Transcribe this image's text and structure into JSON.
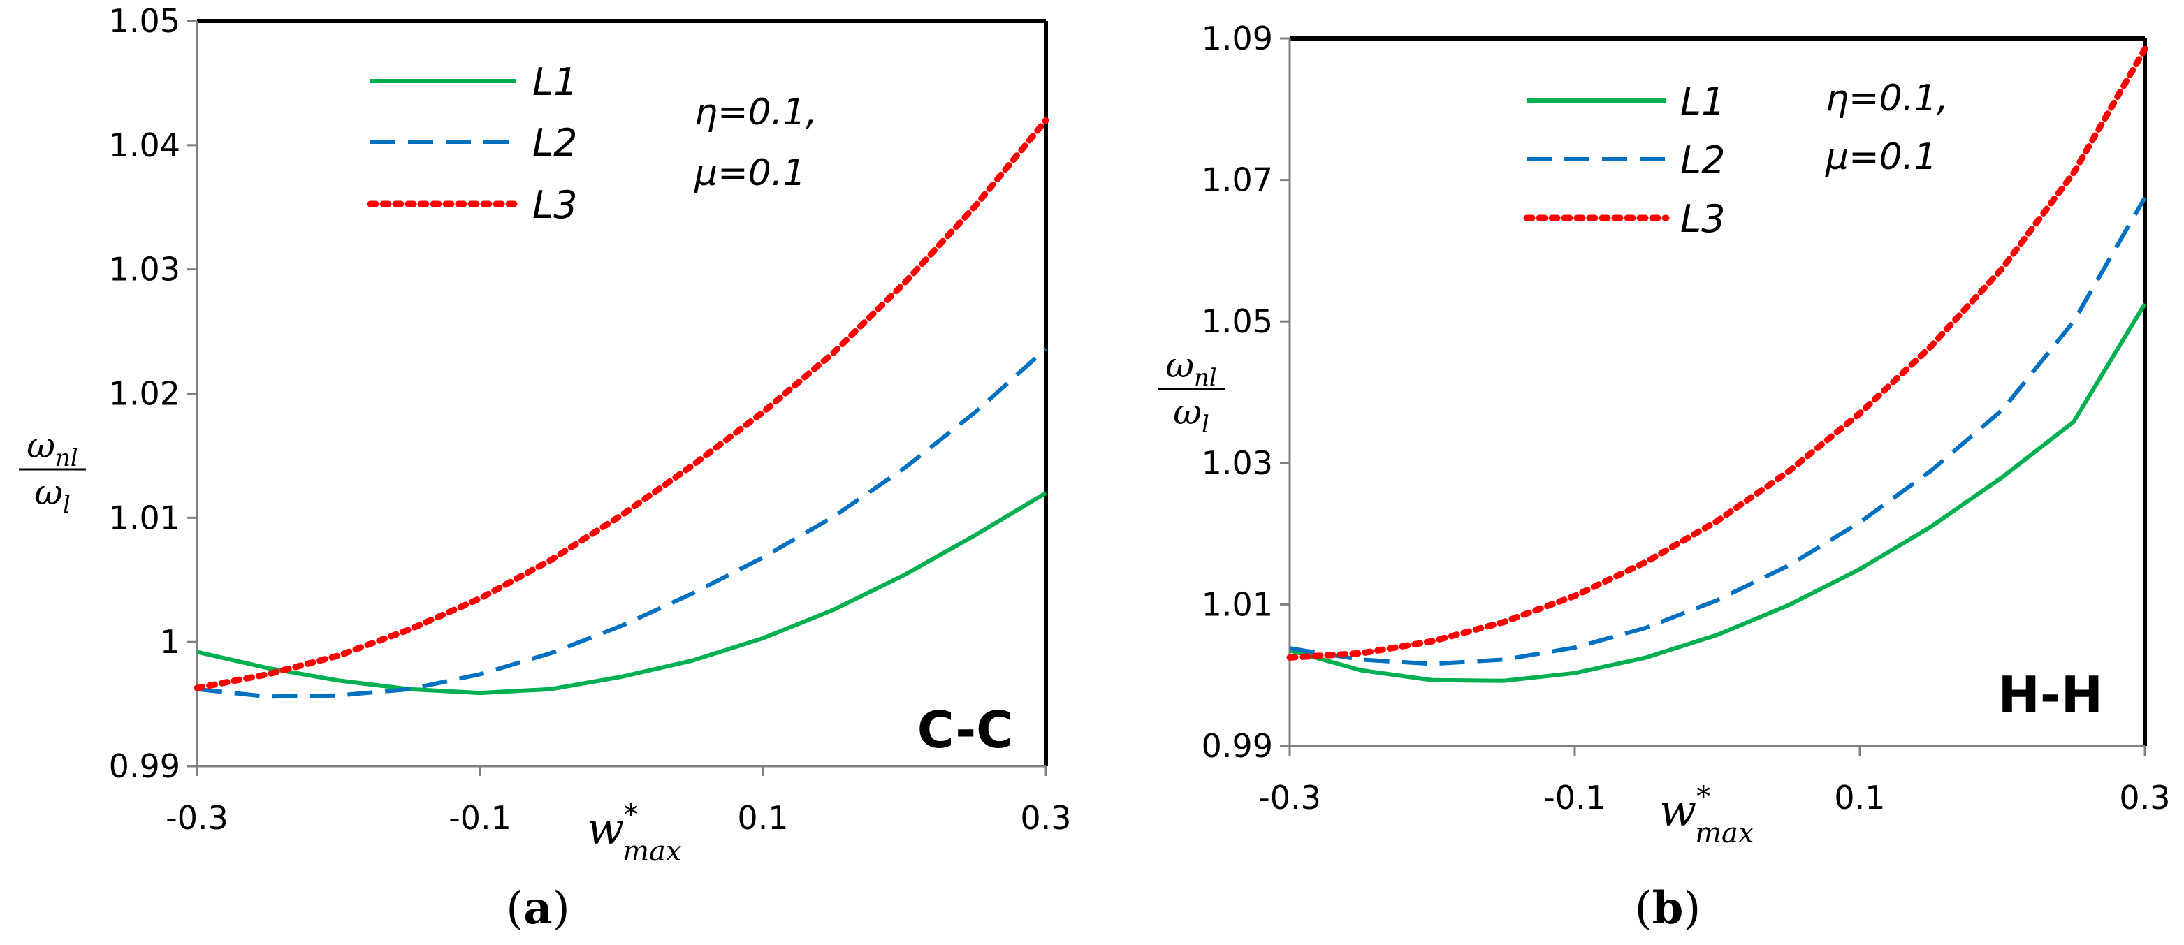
{
  "chart_data": [
    {
      "type": "line",
      "panel_label": "a",
      "boundary_condition": "C-C",
      "xlabel_base": "w",
      "xlabel_sup": "*",
      "xlabel_sub": "max",
      "ylabel_num": "ω",
      "ylabel_num_sub": "nl",
      "ylabel_den": "ω",
      "ylabel_den_sub": "l",
      "xlim": [
        -0.3,
        0.3
      ],
      "ylim": [
        0.99,
        1.05
      ],
      "xticks": [
        -0.3,
        -0.1,
        0.1,
        0.3
      ],
      "xtick_labels": [
        "-0.3",
        "-0.1",
        "0.1",
        "0.3"
      ],
      "yticks": [
        0.99,
        1.0,
        1.01,
        1.02,
        1.03,
        1.04,
        1.05
      ],
      "ytick_labels": [
        "0.99",
        "1",
        "1.01",
        "1.02",
        "1.03",
        "1.04",
        "1.05"
      ],
      "annotation_line1": "η=0.1,",
      "annotation_line2": "μ=0.1",
      "x": [
        -0.3,
        -0.25,
        -0.2,
        -0.15,
        -0.1,
        -0.05,
        0.0,
        0.05,
        0.1,
        0.15,
        0.2,
        0.25,
        0.3
      ],
      "series": [
        {
          "name": "L1",
          "color": "#00b050",
          "style": "solid",
          "values": [
            0.9992,
            0.9979,
            0.9969,
            0.9962,
            0.9959,
            0.9962,
            0.9972,
            0.9985,
            1.0003,
            1.0026,
            1.0054,
            1.0086,
            1.012
          ]
        },
        {
          "name": "L2",
          "color": "#0070c0",
          "style": "dashed",
          "values": [
            0.9962,
            0.9956,
            0.9957,
            0.9962,
            0.9974,
            0.9991,
            1.0013,
            1.0039,
            1.0068,
            1.0101,
            1.014,
            1.0185,
            1.0236
          ]
        },
        {
          "name": "L3",
          "color": "#ff0000",
          "style": "dotted",
          "values": [
            0.9963,
            0.9974,
            0.9989,
            1.001,
            1.0035,
            1.0066,
            1.0102,
            1.0142,
            1.0185,
            1.0233,
            1.0289,
            1.0351,
            1.042
          ]
        }
      ]
    },
    {
      "type": "line",
      "panel_label": "b",
      "boundary_condition": "H-H",
      "xlabel_base": "w",
      "xlabel_sup": "*",
      "xlabel_sub": "max",
      "ylabel_num": "ω",
      "ylabel_num_sub": "nl",
      "ylabel_den": "ω",
      "ylabel_den_sub": "l",
      "xlim": [
        -0.3,
        0.3
      ],
      "ylim": [
        0.99,
        1.09
      ],
      "xticks": [
        -0.3,
        -0.1,
        0.1,
        0.3
      ],
      "xtick_labels": [
        "-0.3",
        "-0.1",
        "0.1",
        "0.3"
      ],
      "yticks": [
        0.99,
        1.01,
        1.03,
        1.05,
        1.07,
        1.09
      ],
      "ytick_labels": [
        "0.99",
        "1.01",
        "1.03",
        "1.05",
        "1.07",
        "1.09"
      ],
      "annotation_line1": "η=0.1,",
      "annotation_line2": "μ=0.1",
      "x": [
        -0.3,
        -0.25,
        -0.2,
        -0.15,
        -0.1,
        -0.05,
        0.0,
        0.05,
        0.1,
        0.15,
        0.2,
        0.25,
        0.3
      ],
      "series": [
        {
          "name": "L1",
          "color": "#00b050",
          "style": "solid",
          "values": [
            1.0035,
            1.0007,
            0.9993,
            0.9992,
            1.0003,
            1.0025,
            1.0057,
            1.0099,
            1.015,
            1.021,
            1.028,
            1.0358,
            1.0525
          ]
        },
        {
          "name": "L2",
          "color": "#0070c0",
          "style": "dashed",
          "values": [
            1.0038,
            1.0022,
            1.0016,
            1.0022,
            1.0039,
            1.0067,
            1.0106,
            1.0155,
            1.0216,
            1.0289,
            1.0375,
            1.05,
            1.0675
          ]
        },
        {
          "name": "L3",
          "color": "#ff0000",
          "style": "dotted",
          "values": [
            1.0025,
            1.0031,
            1.0048,
            1.0075,
            1.0112,
            1.016,
            1.0218,
            1.0288,
            1.037,
            1.0465,
            1.0575,
            1.071,
            1.0885
          ]
        }
      ]
    }
  ]
}
